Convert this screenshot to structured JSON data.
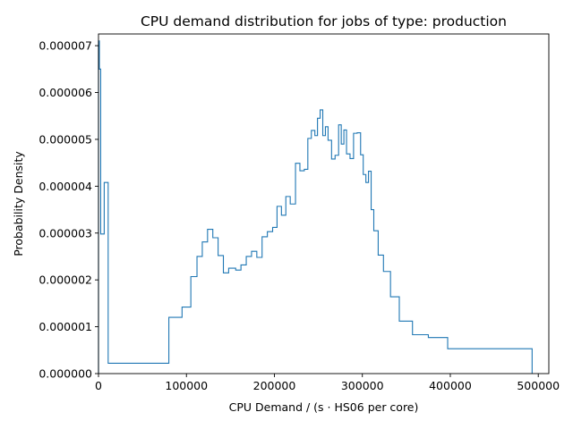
{
  "chart_data": {
    "type": "histogram",
    "title": "CPU demand distribution for jobs of type: production",
    "xlabel": "CPU Demand / (s · HS06 per core)",
    "ylabel": "Probability Density",
    "xlim": [
      0,
      512000
    ],
    "ylim": [
      0,
      7.25e-06
    ],
    "xticks": [
      0,
      100000,
      200000,
      300000,
      400000,
      500000
    ],
    "xtick_labels": [
      "0",
      "100000",
      "200000",
      "300000",
      "400000",
      "500000"
    ],
    "yticks": [
      0,
      1e-06,
      2e-06,
      3e-06,
      4e-06,
      5e-06,
      6e-06,
      7e-06
    ],
    "ytick_labels": [
      "0.000000",
      "0.000001",
      "0.000002",
      "0.000003",
      "0.000004",
      "0.000005",
      "0.000006",
      "0.000007"
    ],
    "grid": false,
    "line_color": "#1f77b4",
    "series": [
      {
        "style": "step",
        "bin_edges": [
          0,
          1000,
          2500,
          4500,
          6500,
          11000,
          80000,
          95000,
          105000,
          112000,
          118000,
          124000,
          130000,
          136000,
          142000,
          148000,
          156000,
          162000,
          168000,
          174000,
          180000,
          186000,
          192000,
          198000,
          203000,
          208000,
          213000,
          218000,
          224000,
          229000,
          234000,
          238000,
          242000,
          246000,
          249000,
          252000,
          255000,
          258000,
          261000,
          265000,
          269000,
          273000,
          276000,
          279000,
          282000,
          286000,
          290000,
          294000,
          298000,
          301000,
          304000,
          307000,
          310000,
          313000,
          318000,
          324000,
          332000,
          342000,
          357000,
          375000,
          397000,
          493000
        ],
        "densities": [
          7.1e-06,
          6.5e-06,
          2.98e-06,
          2.98e-06,
          4.08e-06,
          2.2e-07,
          1.2e-06,
          1.42e-06,
          2.07e-06,
          2.5e-06,
          2.81e-06,
          3.08e-06,
          2.9e-06,
          2.52e-06,
          2.15e-06,
          2.25e-06,
          2.21e-06,
          2.32e-06,
          2.5e-06,
          2.61e-06,
          2.48e-06,
          2.92e-06,
          3.03e-06,
          3.12e-06,
          3.57e-06,
          3.38e-06,
          3.78e-06,
          3.62e-06,
          4.49e-06,
          4.33e-06,
          4.36e-06,
          5.02e-06,
          5.19e-06,
          5.08e-06,
          5.45e-06,
          5.63e-06,
          5.08e-06,
          5.27e-06,
          4.98e-06,
          4.58e-06,
          4.66e-06,
          5.31e-06,
          4.9e-06,
          5.2e-06,
          4.69e-06,
          4.59e-06,
          5.13e-06,
          5.14e-06,
          4.67e-06,
          4.25e-06,
          4.08e-06,
          4.32e-06,
          3.5e-06,
          3.05e-06,
          2.53e-06,
          2.18e-06,
          1.64e-06,
          1.12e-06,
          8.3e-07,
          7.7e-07,
          5.3e-07
        ]
      }
    ]
  }
}
